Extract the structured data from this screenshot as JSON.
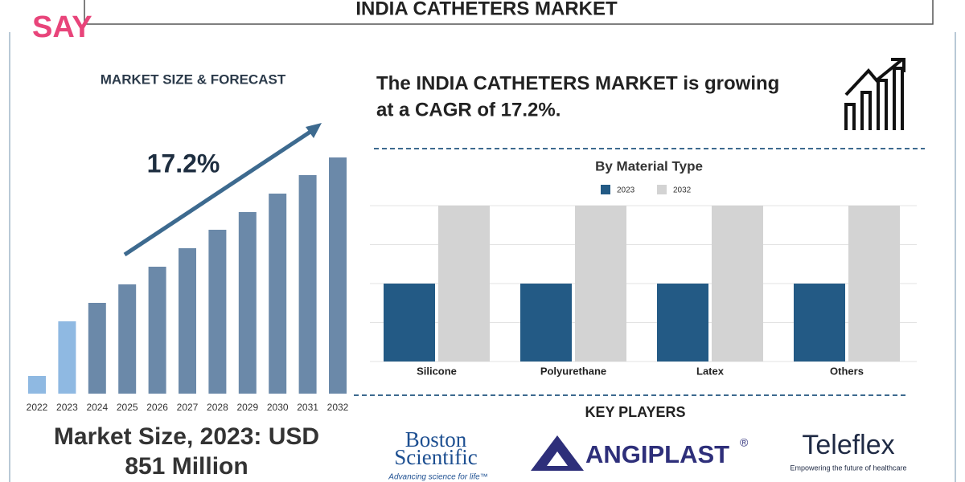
{
  "header": {
    "logo": "SAY",
    "title": "INDIA CATHETERS MARKET"
  },
  "chart_data": [
    {
      "type": "bar",
      "title": "MARKET SIZE & FORECAST",
      "annotation": "17.2%",
      "categories": [
        "2022",
        "2023",
        "2024",
        "2025",
        "2026",
        "2027",
        "2028",
        "2029",
        "2030",
        "2031",
        "2032"
      ],
      "values": [
        22,
        90,
        113,
        136,
        158,
        181,
        204,
        226,
        249,
        272,
        294
      ],
      "colors": [
        "#8fb9e2",
        "#8fb9e2",
        "#6b89a9",
        "#6b89a9",
        "#6b89a9",
        "#6b89a9",
        "#6b89a9",
        "#6b89a9",
        "#6b89a9",
        "#6b89a9",
        "#6b89a9"
      ],
      "ylim": [
        0,
        300
      ]
    },
    {
      "type": "grouped-bar",
      "title": "By Material Type",
      "categories": [
        "Silicone",
        "Polyurethane",
        "Latex",
        "Others"
      ],
      "series": [
        {
          "name": "2023",
          "color": "#235a85",
          "values": [
            2,
            2,
            2,
            2
          ]
        },
        {
          "name": "2032",
          "color": "#d3d3d3",
          "values": [
            4,
            4,
            4,
            4
          ]
        }
      ],
      "ylim": [
        0,
        4
      ],
      "grid": true
    }
  ],
  "market_size": [
    "Market Size, 2023: USD",
    "851 Million"
  ],
  "headline": [
    "The INDIA CATHETERS MARKET is growing",
    "at a CAGR of 17.2%."
  ],
  "key_players": {
    "title": "KEY PLAYERS",
    "logos": [
      {
        "name": [
          "Boston",
          "Scientific"
        ],
        "tagline": "Advancing science for life™"
      },
      {
        "name": "ANGIPLAST",
        "mark": "®"
      },
      {
        "name": "Teleflex",
        "tagline": "Empowering the future of healthcare"
      }
    ]
  }
}
